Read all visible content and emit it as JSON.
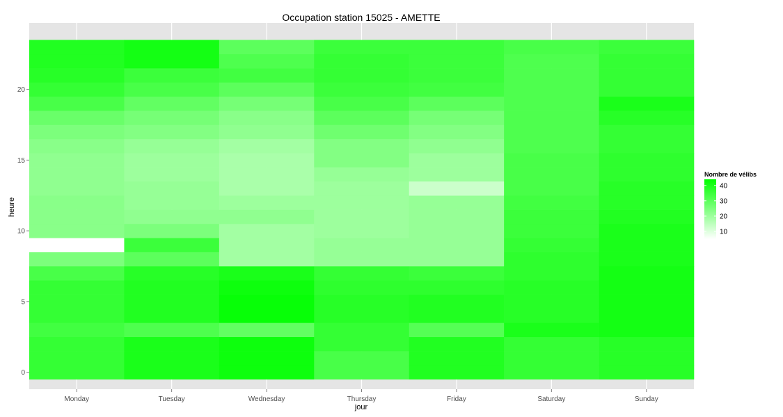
{
  "chart_data": {
    "type": "heatmap",
    "title": "Occupation station 15025 - AMETTE",
    "xlabel": "jour",
    "ylabel": "heure",
    "categories": [
      "Monday",
      "Tuesday",
      "Wednesday",
      "Thursday",
      "Friday",
      "Saturday",
      "Sunday"
    ],
    "y_hours": [
      0,
      1,
      2,
      3,
      4,
      5,
      6,
      7,
      8,
      9,
      10,
      11,
      12,
      13,
      14,
      15,
      16,
      17,
      18,
      19,
      20,
      21,
      22,
      23
    ],
    "yticks": [
      0,
      5,
      10,
      15,
      20
    ],
    "xlim": [
      0.5,
      7.5
    ],
    "ylim": [
      -1.2,
      24.7
    ],
    "legend": {
      "title": "Nombre de vélibs",
      "ticks": [
        10,
        20,
        30,
        40
      ],
      "range": [
        5,
        44
      ],
      "low_color": "#ffffff",
      "high_color": "#00ff00",
      "position": "right"
    },
    "grid": true,
    "panel_background": "#e5e5e5",
    "values": [
      [
        36,
        36,
        36,
        34,
        36,
        36,
        36,
        33,
        25,
        5,
        23,
        23,
        23,
        22,
        22,
        22,
        23,
        25,
        28,
        33,
        36,
        38,
        39,
        39
      ],
      [
        40,
        40,
        40,
        32,
        39,
        39,
        39,
        38,
        30,
        35,
        25,
        22,
        21,
        21,
        20,
        20,
        21,
        24,
        26,
        29,
        33,
        35,
        41,
        41
      ],
      [
        42,
        42,
        42,
        29,
        43,
        43,
        42,
        40,
        19,
        19,
        19,
        22,
        20,
        18,
        18,
        18,
        19,
        22,
        23,
        26,
        30,
        34,
        32,
        30
      ],
      [
        33,
        33,
        36,
        36,
        38,
        38,
        37,
        36,
        21,
        21,
        20,
        20,
        20,
        20,
        21,
        24,
        24,
        27,
        30,
        33,
        35,
        36,
        36,
        35
      ],
      [
        39,
        39,
        39,
        31,
        39,
        39,
        37,
        35,
        21,
        21,
        21,
        21,
        21,
        13,
        20,
        20,
        22,
        24,
        26,
        30,
        34,
        35,
        35,
        35
      ],
      [
        36,
        36,
        36,
        40,
        38,
        38,
        38,
        37,
        37,
        36,
        35,
        35,
        34,
        33,
        33,
        33,
        32,
        32,
        32,
        32,
        32,
        32,
        32,
        33
      ],
      [
        38,
        38,
        38,
        41,
        41,
        41,
        41,
        41,
        40,
        40,
        40,
        39,
        38,
        38,
        37,
        37,
        36,
        36,
        38,
        40,
        36,
        36,
        36,
        35
      ]
    ]
  }
}
